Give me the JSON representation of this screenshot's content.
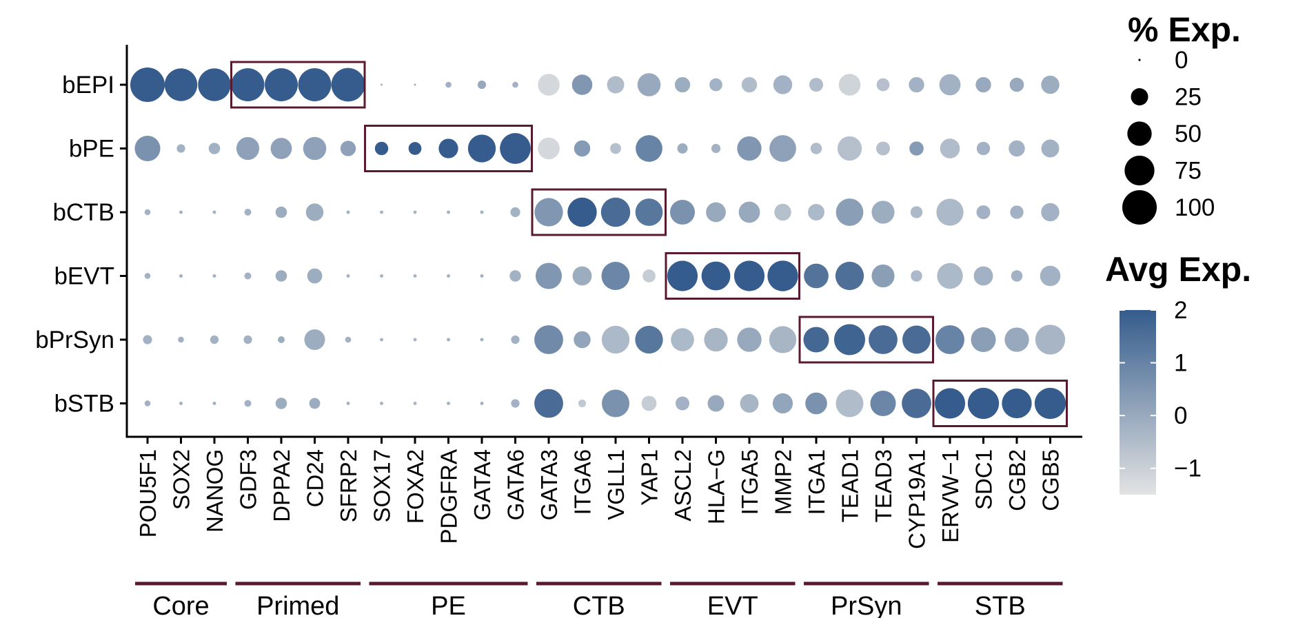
{
  "chart_data": {
    "type": "dotplot",
    "title": "",
    "rows": [
      "bEPI",
      "bPE",
      "bCTB",
      "bEVT",
      "bPrSyn",
      "bSTB"
    ],
    "genes": [
      "POU5F1",
      "SOX2",
      "NANOG",
      "GDF3",
      "DPPA2",
      "CD24",
      "SFRP2",
      "SOX17",
      "FOXA2",
      "PDGFRA",
      "GATA4",
      "GATA6",
      "GATA3",
      "ITGA6",
      "VGLL1",
      "YAP1",
      "ASCL2",
      "HLA−G",
      "ITGA5",
      "MMP2",
      "ITGA1",
      "TEAD1",
      "TEAD3",
      "CYP19A1",
      "ERVW−1",
      "SDC1",
      "CGB2",
      "CGB5"
    ],
    "groups": [
      {
        "name": "Core",
        "start": 0,
        "end": 2
      },
      {
        "name": "Primed",
        "start": 3,
        "end": 6
      },
      {
        "name": "PE",
        "start": 7,
        "end": 11
      },
      {
        "name": "CTB",
        "start": 12,
        "end": 15
      },
      {
        "name": "EVT",
        "start": 16,
        "end": 19
      },
      {
        "name": "PrSyn",
        "start": 20,
        "end": 23
      },
      {
        "name": "STB",
        "start": 24,
        "end": 27
      }
    ],
    "highlights": [
      {
        "row": 0,
        "start": 3,
        "end": 6
      },
      {
        "row": 1,
        "start": 7,
        "end": 11
      },
      {
        "row": 2,
        "start": 12,
        "end": 15
      },
      {
        "row": 3,
        "start": 16,
        "end": 19
      },
      {
        "row": 4,
        "start": 20,
        "end": 23
      },
      {
        "row": 5,
        "start": 24,
        "end": 27
      }
    ],
    "pct_exp": [
      [
        100,
        90,
        90,
        92,
        92,
        92,
        95,
        0,
        0,
        3,
        6,
        3,
        40,
        35,
        25,
        45,
        20,
        14,
        20,
        30,
        16,
        40,
        14,
        20,
        38,
        20,
        17,
        28
      ],
      [
        55,
        6,
        11,
        44,
        38,
        45,
        20,
        15,
        14,
        32,
        65,
        80,
        40,
        22,
        10,
        60,
        9,
        7,
        50,
        60,
        11,
        50,
        16,
        17,
        33,
        15,
        22,
        27
      ],
      [
        3,
        1,
        1,
        4,
        11,
        26,
        1,
        1,
        1,
        1,
        1,
        8,
        68,
        72,
        72,
        63,
        52,
        33,
        38,
        24,
        23,
        63,
        44,
        12,
        62,
        16,
        15,
        28
      ],
      [
        3,
        1,
        1,
        4,
        11,
        19,
        1,
        1,
        1,
        1,
        1,
        11,
        58,
        31,
        67,
        14,
        78,
        70,
        78,
        79,
        51,
        68,
        44,
        11,
        56,
        31,
        11,
        35
      ],
      [
        7,
        3,
        6,
        6,
        4,
        36,
        3,
        1,
        1,
        1,
        1,
        6,
        70,
        24,
        65,
        65,
        45,
        47,
        50,
        62,
        55,
        81,
        70,
        67,
        70,
        52,
        50,
        75
      ],
      [
        3,
        1,
        1,
        4,
        11,
        10,
        1,
        1,
        1,
        1,
        1,
        6,
        70,
        5,
        64,
        19,
        16,
        23,
        29,
        34,
        40,
        64,
        55,
        73,
        78,
        82,
        75,
        82
      ]
    ],
    "avg_exp": [
      [
        2.0,
        2.0,
        2.0,
        2.0,
        2.0,
        2.0,
        2.0,
        -0.3,
        -0.3,
        -0.2,
        0,
        -0.2,
        -1.2,
        0.5,
        -0.5,
        0,
        -0.1,
        -0.2,
        -0.5,
        -0.2,
        -0.5,
        -1.1,
        -0.6,
        -0.2,
        -0.2,
        0,
        0,
        -0.1
      ],
      [
        0.6,
        -0.2,
        -0.2,
        0.2,
        0.2,
        0.2,
        0.2,
        2.0,
        2.0,
        2.0,
        2.0,
        2.0,
        -1.2,
        0.4,
        -0.6,
        1.0,
        -0.1,
        -0.2,
        0.5,
        0.2,
        -0.5,
        -0.6,
        -0.6,
        0.4,
        -0.5,
        -0.2,
        -0.2,
        -0.2
      ],
      [
        -0.2,
        -0.2,
        -0.2,
        -0.2,
        -0.1,
        -0.1,
        -0.2,
        -0.3,
        -0.3,
        -0.2,
        -0.2,
        -0.2,
        0.5,
        2.0,
        1.6,
        1.3,
        0.6,
        0,
        0,
        -0.6,
        -0.4,
        0.3,
        -0.1,
        -0.4,
        -0.4,
        -0.2,
        -0.2,
        -0.2
      ],
      [
        -0.2,
        -0.2,
        -0.2,
        -0.2,
        -0.1,
        -0.1,
        -0.2,
        -0.3,
        -0.3,
        -0.2,
        -0.2,
        -0.2,
        0.5,
        -0.1,
        0.9,
        -0.9,
        2.0,
        2.0,
        2.0,
        2.0,
        1.4,
        1.5,
        0.3,
        -0.4,
        -0.4,
        -0.2,
        -0.2,
        -0.2
      ],
      [
        -0.2,
        -0.2,
        -0.2,
        -0.2,
        -0.1,
        -0.1,
        -0.2,
        -0.3,
        -0.3,
        -0.2,
        -0.2,
        -0.2,
        0.8,
        0.1,
        -0.4,
        1.3,
        -0.4,
        -0.3,
        0,
        -0.3,
        1.7,
        1.8,
        1.6,
        1.6,
        1.0,
        0.3,
        0,
        -0.3
      ],
      [
        -0.2,
        -0.2,
        -0.2,
        -0.2,
        -0.1,
        -0.1,
        -0.2,
        -0.3,
        -0.3,
        -0.2,
        -0.2,
        -0.2,
        1.6,
        -0.8,
        0.6,
        -0.9,
        -0.2,
        0,
        -0.3,
        0.1,
        0.6,
        -0.5,
        0.9,
        1.6,
        2.0,
        2.0,
        2.0,
        2.0
      ]
    ],
    "size_legend": {
      "title": "% Exp.",
      "values": [
        0,
        25,
        50,
        75,
        100
      ]
    },
    "color_legend": {
      "title": "Avg Exp.",
      "ticks": [
        2,
        1,
        0,
        -1
      ],
      "tick_labels": [
        "2",
        "1",
        "0",
        "−1"
      ],
      "range": [
        -1.5,
        2
      ],
      "low_color": "#e3e3e3",
      "high_color": "#355c8c"
    },
    "box_color": "#5a1a2e",
    "group_line_color": "#5a1a2e"
  }
}
